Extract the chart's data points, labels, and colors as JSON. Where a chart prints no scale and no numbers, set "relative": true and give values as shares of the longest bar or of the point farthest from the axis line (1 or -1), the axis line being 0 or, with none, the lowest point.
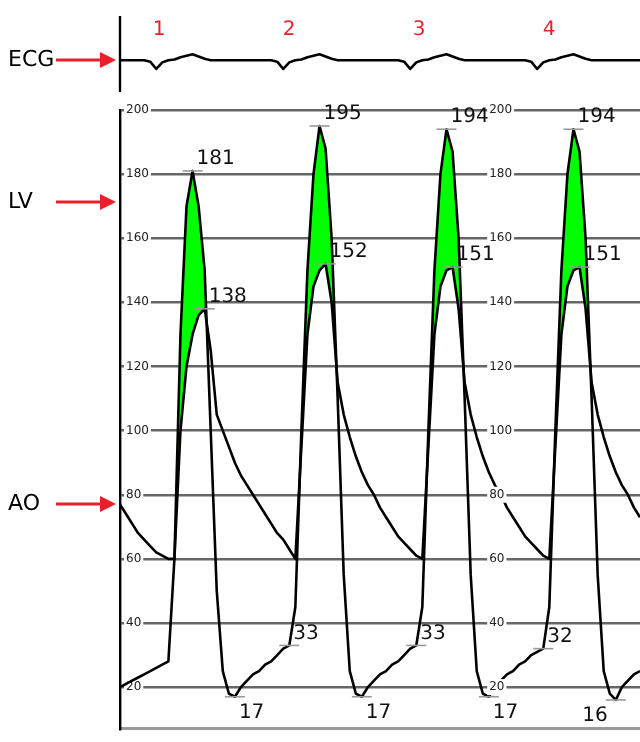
{
  "chart_data": [
    {
      "type": "line",
      "relative": true,
      "tick_labels": false,
      "marker": "none",
      "annotations": [
        "1",
        "2",
        "3",
        "4"
      ],
      "categories": [
        null,
        null,
        null,
        null,
        null,
        null,
        null,
        null,
        null,
        null,
        null,
        null,
        null,
        null,
        null,
        null,
        null,
        null,
        null,
        null,
        null,
        null,
        null,
        null,
        null,
        null,
        null,
        null,
        null,
        null,
        null,
        null,
        null,
        null,
        null,
        null,
        null,
        null,
        null,
        null,
        null,
        null,
        null,
        null,
        null,
        null,
        null,
        null,
        null,
        null,
        null,
        null,
        null,
        null,
        null,
        null,
        null,
        null,
        null,
        null,
        null,
        null,
        null,
        null,
        null,
        null,
        null,
        null,
        null,
        null,
        null,
        null,
        null,
        null,
        null,
        null,
        null,
        null,
        null,
        null,
        null,
        null,
        null,
        null,
        null,
        null,
        null
      ],
      "series": [
        {
          "name": "ECG",
          "color": "#000000",
          "values": [
            0.6,
            0.6,
            0.6,
            0.6,
            0.6,
            0.5,
            0,
            0.45,
            0.6,
            0.65,
            0.8,
            0.9,
            1,
            0.85,
            0.7,
            0.6,
            0.6,
            0.6,
            0.6,
            0.6,
            0.6,
            0.6,
            0.6,
            0.6,
            0.6,
            0.6,
            0.5,
            0,
            0.45,
            0.6,
            0.65,
            0.8,
            0.9,
            1,
            0.85,
            0.7,
            0.6,
            0.6,
            0.6,
            0.6,
            0.6,
            0.6,
            0.6,
            0.6,
            0.6,
            0.6,
            0.6,
            0.5,
            0,
            0.45,
            0.6,
            0.65,
            0.8,
            0.9,
            1,
            0.85,
            0.7,
            0.6,
            0.6,
            0.6,
            0.6,
            0.6,
            0.6,
            0.6,
            0.6,
            0.6,
            0.6,
            0.6,
            0.5,
            0,
            0.45,
            0.6,
            0.65,
            0.8,
            0.9,
            1,
            0.85,
            0.7,
            0.6,
            0.6,
            0.6,
            0.6,
            0.6,
            0.6,
            0.6,
            0.6,
            0.6
          ]
        }
      ]
    },
    {
      "type": "line",
      "ylim": [
        7,
        200
      ],
      "yticks": [
        20,
        40,
        60,
        80,
        100,
        120,
        140,
        160,
        180,
        200
      ],
      "y2lim": [
        7,
        200
      ],
      "y2ticks": [
        20,
        40,
        60,
        80,
        100,
        120,
        140,
        160,
        180,
        200
      ],
      "grid": "y",
      "tick_labels": "y",
      "marker": "none",
      "categories": [
        null,
        null,
        null,
        null,
        null,
        null,
        null,
        null,
        null,
        null,
        null,
        null,
        null,
        null,
        null,
        null,
        null,
        null,
        null,
        null,
        null,
        null,
        null,
        null,
        null,
        null,
        null,
        null,
        null,
        null,
        null,
        null,
        null,
        null,
        null,
        null,
        null,
        null,
        null,
        null,
        null,
        null,
        null,
        null,
        null,
        null,
        null,
        null,
        null,
        null,
        null,
        null,
        null,
        null,
        null,
        null,
        null,
        null,
        null,
        null,
        null,
        null,
        null,
        null,
        null,
        null,
        null,
        null,
        null,
        null,
        null,
        null,
        null,
        null,
        null,
        null,
        null,
        null,
        null,
        null,
        null,
        null,
        null,
        null,
        null,
        null,
        null
      ],
      "series": [
        {
          "name": "LV",
          "color": "#000000",
          "values": [
            20,
            21,
            22,
            23,
            24,
            25,
            26,
            27,
            28,
            60,
            130,
            170,
            181,
            170,
            150,
            100,
            50,
            25,
            18,
            17,
            20,
            22,
            24,
            25,
            27,
            28,
            30,
            32,
            33,
            45,
            100,
            150,
            180,
            195,
            188,
            160,
            110,
            55,
            25,
            18,
            17,
            20,
            22,
            24,
            25,
            27,
            28,
            30,
            32,
            33,
            45,
            100,
            150,
            180,
            194,
            187,
            160,
            110,
            55,
            25,
            18,
            17,
            20,
            22,
            24,
            25,
            27,
            28,
            30,
            31,
            32,
            45,
            100,
            150,
            180,
            194,
            187,
            160,
            110,
            55,
            25,
            18,
            16,
            20,
            22,
            24,
            25
          ],
          "value_labels": [
            null,
            null,
            null,
            null,
            null,
            null,
            null,
            null,
            null,
            null,
            null,
            null,
            "181",
            null,
            null,
            null,
            null,
            null,
            null,
            "17",
            null,
            null,
            null,
            null,
            null,
            null,
            null,
            null,
            "33",
            null,
            null,
            null,
            null,
            "195",
            null,
            null,
            null,
            null,
            null,
            null,
            "17",
            null,
            null,
            null,
            null,
            null,
            null,
            null,
            null,
            "33",
            null,
            null,
            null,
            null,
            "194",
            null,
            null,
            null,
            null,
            null,
            null,
            "17",
            null,
            null,
            null,
            null,
            null,
            null,
            null,
            null,
            "32",
            null,
            null,
            null,
            null,
            "194",
            null,
            null,
            null,
            null,
            null,
            null,
            "16",
            null,
            null,
            null,
            null
          ]
        },
        {
          "name": "AO",
          "color": "#000000",
          "values": [
            77,
            74,
            71,
            68,
            66,
            64,
            62,
            61,
            60,
            60,
            100,
            120,
            130,
            136,
            138,
            125,
            105,
            100,
            95,
            90,
            86,
            83,
            80,
            77,
            74,
            71,
            68,
            66,
            63,
            60,
            95,
            130,
            145,
            150,
            152,
            140,
            115,
            105,
            98,
            92,
            87,
            83,
            80,
            76,
            73,
            70,
            67,
            65,
            63,
            61,
            60,
            95,
            130,
            145,
            150,
            151,
            138,
            115,
            105,
            98,
            92,
            87,
            83,
            80,
            76,
            73,
            70,
            67,
            65,
            63,
            61,
            60,
            95,
            130,
            145,
            150,
            151,
            138,
            115,
            105,
            98,
            92,
            87,
            83,
            80,
            76,
            73
          ],
          "value_labels": [
            null,
            null,
            null,
            null,
            null,
            null,
            null,
            null,
            null,
            null,
            null,
            null,
            null,
            null,
            "138",
            null,
            null,
            null,
            null,
            null,
            null,
            null,
            null,
            null,
            null,
            null,
            null,
            null,
            null,
            null,
            null,
            null,
            null,
            null,
            "152",
            null,
            null,
            null,
            null,
            null,
            null,
            null,
            null,
            null,
            null,
            null,
            null,
            null,
            null,
            null,
            null,
            null,
            null,
            null,
            null,
            "151",
            null,
            null,
            null,
            null,
            null,
            null,
            null,
            null,
            null,
            null,
            null,
            null,
            null,
            null,
            null,
            null,
            null,
            null,
            null,
            null,
            "151",
            null,
            null,
            null,
            null,
            null,
            null,
            null,
            null,
            null,
            null
          ]
        }
      ]
    }
  ]
}
